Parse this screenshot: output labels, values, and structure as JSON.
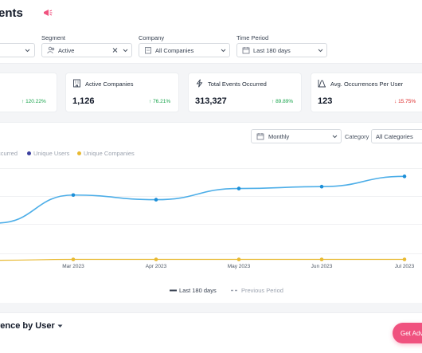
{
  "header": {
    "title": "ents"
  },
  "filters": {
    "segment": {
      "label": "Segment",
      "value": "Active"
    },
    "company": {
      "label": "Company",
      "value": "All Companies"
    },
    "time_period": {
      "label": "Time Period",
      "value": "Last 180 days"
    }
  },
  "cards": [
    {
      "title": "",
      "value": "",
      "change": "120.22%",
      "direction": "up"
    },
    {
      "title": "Active Companies",
      "value": "1,126",
      "change": "76.21%",
      "direction": "up"
    },
    {
      "title": "Total Events Occurred",
      "value": "313,327",
      "change": "89.89%",
      "direction": "up"
    },
    {
      "title": "Avg. Occurrences Per User",
      "value": "123",
      "change": "15.75%",
      "direction": "down"
    }
  ],
  "chart_controls": {
    "granularity": "Monthly",
    "category_label": "Category",
    "category_value": "All Categories"
  },
  "chart_legend_top": [
    {
      "name": "ccurred",
      "color": "#c4c7cc"
    },
    {
      "name": "Unique Users",
      "color": "#3b3f9e"
    },
    {
      "name": "Unique Companies",
      "color": "#e8b931"
    }
  ],
  "chart_legend_bottom": {
    "current": "Last 180 days",
    "previous": "Previous Period"
  },
  "chart_data": {
    "type": "line",
    "categories": [
      "",
      "Mar 2023",
      "Apr 2023",
      "May 2023",
      "Jun 2023",
      "Jul 2023"
    ],
    "series": [
      {
        "name": "Unique Users",
        "color": "#4daee8",
        "values": [
          42,
          72,
          67,
          79,
          81,
          92
        ]
      },
      {
        "name": "Unique Companies",
        "color": "#e8b931",
        "values": [
          2,
          3,
          3,
          3,
          3,
          3
        ]
      }
    ],
    "ylim": [
      0,
      100
    ],
    "grid": true
  },
  "bottom": {
    "section_title": "rence by User",
    "cta_label": "Get Adv"
  },
  "colors": {
    "accent": "#f0527f",
    "line": "#4daee8",
    "up": "#16a34a",
    "down": "#dc2626"
  }
}
